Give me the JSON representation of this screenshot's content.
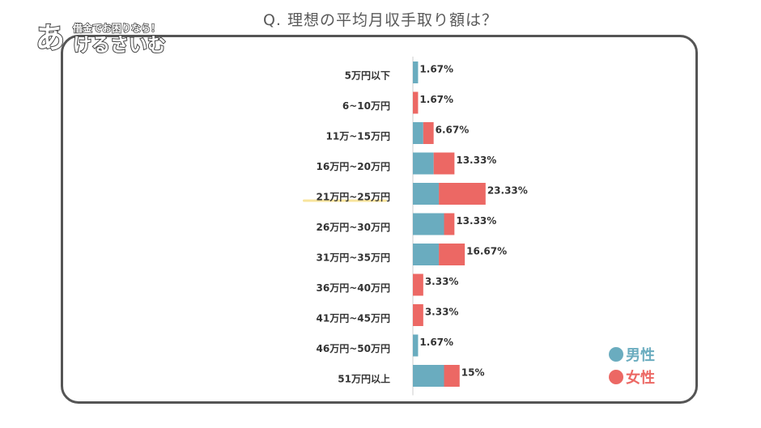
{
  "title": "Q. 理想の平均月収手取り額は？",
  "logo": {
    "tagline": "借金でお困りなら！",
    "big": "あ",
    "main": "けるさいむ"
  },
  "colors": {
    "male": "#6aacbf",
    "female": "#ec6864",
    "highlight": "#f8e49c"
  },
  "chart_data": {
    "type": "bar",
    "stacked": true,
    "orientation": "horizontal",
    "title": "Q. 理想の平均月収手取り額は？",
    "categories": [
      "5万円以下",
      "6~10万円",
      "11万~15万円",
      "16万円~20万円",
      "21万円~25万円",
      "26万円~30万円",
      "31万円~35万円",
      "36万円~40万円",
      "41万円~45万円",
      "46万円~50万円",
      "51万円以上"
    ],
    "series": [
      {
        "name": "男性",
        "values": [
          1.67,
          0,
          3.33,
          6.67,
          8.33,
          10,
          8.33,
          0,
          0,
          1.67,
          10
        ]
      },
      {
        "name": "女性",
        "values": [
          0,
          1.67,
          3.33,
          6.67,
          15,
          3.33,
          8.33,
          3.33,
          3.33,
          0,
          5
        ]
      }
    ],
    "totals": [
      "1.67%",
      "1.67%",
      "6.67%",
      "13.33%",
      "23.33%",
      "13.33%",
      "16.67%",
      "3.33%",
      "3.33%",
      "1.67%",
      "15%"
    ],
    "highlighted_category": "21万円~25万円",
    "legend_position": "bottom-right",
    "grid": false
  }
}
